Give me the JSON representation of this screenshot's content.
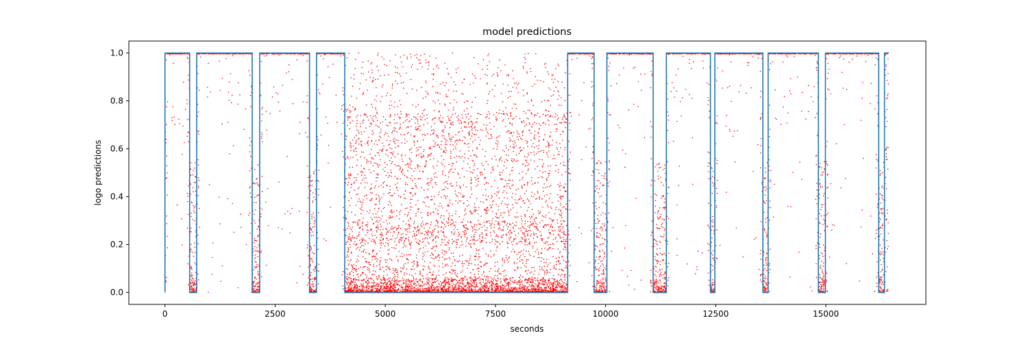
{
  "chart_data": {
    "type": "line+scatter",
    "title": "model predictions",
    "xlabel": "seconds",
    "ylabel": "logo predictions",
    "xlim": [
      -820,
      17270
    ],
    "ylim": [
      -0.05,
      1.05
    ],
    "x_ticks": [
      0,
      2500,
      5000,
      7500,
      10000,
      12500,
      15000
    ],
    "x_tick_labels": [
      "0",
      "2500",
      "5000",
      "7500",
      "10000",
      "12500",
      "15000"
    ],
    "y_ticks": [
      0.0,
      0.2,
      0.4,
      0.6,
      0.8,
      1.0
    ],
    "y_tick_labels": [
      "0.0",
      "0.2",
      "0.4",
      "0.6",
      "0.8",
      "1.0"
    ],
    "grid": false,
    "legend": "none",
    "series": [
      {
        "kind": "step-line",
        "color": "#1f77b4",
        "points": [
          [
            0,
            0
          ],
          [
            0,
            1
          ],
          [
            560,
            1
          ],
          [
            560,
            0
          ],
          [
            720,
            0
          ],
          [
            720,
            1
          ],
          [
            1980,
            1
          ],
          [
            1980,
            0
          ],
          [
            2150,
            0
          ],
          [
            2150,
            1
          ],
          [
            3280,
            1
          ],
          [
            3280,
            0
          ],
          [
            3440,
            0
          ],
          [
            3440,
            1
          ],
          [
            4080,
            1
          ],
          [
            4080,
            0
          ],
          [
            9140,
            0
          ],
          [
            9140,
            1
          ],
          [
            9740,
            1
          ],
          [
            9740,
            0
          ],
          [
            10030,
            0
          ],
          [
            10030,
            1
          ],
          [
            11080,
            1
          ],
          [
            11080,
            0
          ],
          [
            11380,
            0
          ],
          [
            11380,
            1
          ],
          [
            12380,
            1
          ],
          [
            12380,
            0
          ],
          [
            12480,
            0
          ],
          [
            12480,
            1
          ],
          [
            13570,
            1
          ],
          [
            13570,
            0
          ],
          [
            13690,
            0
          ],
          [
            13690,
            1
          ],
          [
            14830,
            1
          ],
          [
            14830,
            0
          ],
          [
            14990,
            0
          ],
          [
            14990,
            1
          ],
          [
            16200,
            1
          ],
          [
            16200,
            0
          ],
          [
            16330,
            0
          ],
          [
            16330,
            1
          ],
          [
            16420,
            1
          ]
        ]
      },
      {
        "kind": "scatter",
        "color": "#ff0000",
        "marker_size": 0.8,
        "x_range": [
          0,
          16420
        ],
        "note_high_segments": [
          [
            0,
            560
          ],
          [
            720,
            1980
          ],
          [
            2150,
            3280
          ],
          [
            3440,
            4080
          ],
          [
            9140,
            9740
          ],
          [
            10030,
            11080
          ],
          [
            11380,
            12380
          ],
          [
            12480,
            13570
          ],
          [
            13690,
            14830
          ],
          [
            14990,
            16200
          ],
          [
            16330,
            16420
          ]
        ],
        "note_low_segments": [
          [
            560,
            720
          ],
          [
            1980,
            2150
          ],
          [
            3280,
            3440
          ],
          [
            4080,
            9140
          ],
          [
            9740,
            10030
          ],
          [
            11080,
            11380
          ],
          [
            12380,
            12480
          ],
          [
            13570,
            13690
          ],
          [
            14830,
            14990
          ],
          [
            16200,
            16330
          ]
        ]
      }
    ]
  }
}
